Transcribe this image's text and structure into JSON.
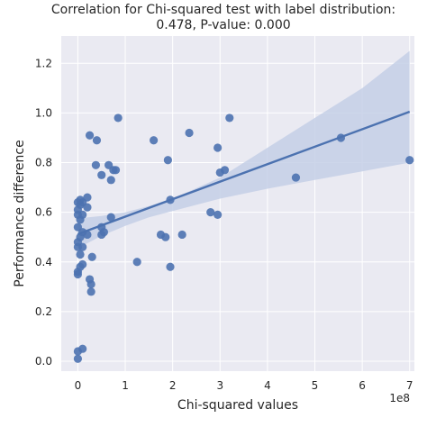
{
  "chart_data": {
    "type": "scatter",
    "title_line1": "Correlation for Chi-squared test with label distribution:",
    "title_line2": "0.478, P-value: 0.000",
    "xlabel": "Chi-squared values",
    "ylabel": "Performance difference",
    "x_offset_label": "1e8",
    "xlim": [
      -0.35,
      7.1
    ],
    "ylim": [
      -0.04,
      1.31
    ],
    "x_ticks": [
      "0",
      "1",
      "2",
      "3",
      "4",
      "5",
      "6",
      "7"
    ],
    "y_ticks": [
      "0.0",
      "0.2",
      "0.4",
      "0.6",
      "0.8",
      "1.0",
      "1.2"
    ],
    "grid": true,
    "point_color": "#4c72b0",
    "line_color": "#4c72b0",
    "band_color": "#c4cfe6",
    "plot_background": "#eaeaf2",
    "regression": {
      "x": [
        0,
        7.0
      ],
      "y": [
        0.512,
        1.005
      ]
    },
    "ci_band": {
      "x": [
        0,
        0.5,
        1.0,
        1.5,
        2.0,
        3.0,
        4.0,
        5.0,
        6.0,
        7.0
      ],
      "lower": [
        0.455,
        0.505,
        0.545,
        0.58,
        0.605,
        0.655,
        0.695,
        0.73,
        0.765,
        0.8
      ],
      "upper": [
        0.575,
        0.585,
        0.6,
        0.625,
        0.655,
        0.74,
        0.86,
        0.98,
        1.1,
        1.25
      ]
    },
    "points": [
      {
        "x": 0.0,
        "y": 0.01
      },
      {
        "x": 0.0,
        "y": 0.04
      },
      {
        "x": 0.1,
        "y": 0.05
      },
      {
        "x": 0.0,
        "y": 0.35
      },
      {
        "x": 0.0,
        "y": 0.36
      },
      {
        "x": 0.05,
        "y": 0.38
      },
      {
        "x": 0.1,
        "y": 0.39
      },
      {
        "x": 0.05,
        "y": 0.43
      },
      {
        "x": 0.0,
        "y": 0.46
      },
      {
        "x": 0.1,
        "y": 0.46
      },
      {
        "x": 0.0,
        "y": 0.48
      },
      {
        "x": 0.05,
        "y": 0.5
      },
      {
        "x": 0.1,
        "y": 0.52
      },
      {
        "x": 0.0,
        "y": 0.54
      },
      {
        "x": 0.05,
        "y": 0.57
      },
      {
        "x": 0.0,
        "y": 0.59
      },
      {
        "x": 0.1,
        "y": 0.59
      },
      {
        "x": 0.0,
        "y": 0.61
      },
      {
        "x": 0.05,
        "y": 0.63
      },
      {
        "x": 0.0,
        "y": 0.64
      },
      {
        "x": 0.1,
        "y": 0.64
      },
      {
        "x": 0.05,
        "y": 0.65
      },
      {
        "x": 0.2,
        "y": 0.62
      },
      {
        "x": 0.2,
        "y": 0.66
      },
      {
        "x": 0.2,
        "y": 0.51
      },
      {
        "x": 0.25,
        "y": 0.33
      },
      {
        "x": 0.28,
        "y": 0.31
      },
      {
        "x": 0.28,
        "y": 0.28
      },
      {
        "x": 0.3,
        "y": 0.42
      },
      {
        "x": 0.25,
        "y": 0.91
      },
      {
        "x": 0.4,
        "y": 0.89
      },
      {
        "x": 0.38,
        "y": 0.79
      },
      {
        "x": 0.5,
        "y": 0.75
      },
      {
        "x": 0.5,
        "y": 0.51
      },
      {
        "x": 0.5,
        "y": 0.54
      },
      {
        "x": 0.55,
        "y": 0.52
      },
      {
        "x": 0.65,
        "y": 0.79
      },
      {
        "x": 0.7,
        "y": 0.73
      },
      {
        "x": 0.75,
        "y": 0.77
      },
      {
        "x": 0.8,
        "y": 0.77
      },
      {
        "x": 0.85,
        "y": 0.98
      },
      {
        "x": 0.7,
        "y": 0.58
      },
      {
        "x": 1.25,
        "y": 0.4
      },
      {
        "x": 1.6,
        "y": 0.89
      },
      {
        "x": 1.75,
        "y": 0.51
      },
      {
        "x": 1.85,
        "y": 0.5
      },
      {
        "x": 1.9,
        "y": 0.81
      },
      {
        "x": 1.95,
        "y": 0.38
      },
      {
        "x": 2.2,
        "y": 0.51
      },
      {
        "x": 2.35,
        "y": 0.92
      },
      {
        "x": 2.8,
        "y": 0.6
      },
      {
        "x": 2.95,
        "y": 0.59
      },
      {
        "x": 2.95,
        "y": 0.86
      },
      {
        "x": 3.0,
        "y": 0.76
      },
      {
        "x": 3.1,
        "y": 0.77
      },
      {
        "x": 3.2,
        "y": 0.98
      },
      {
        "x": 4.6,
        "y": 0.74
      },
      {
        "x": 5.55,
        "y": 0.9
      },
      {
        "x": 7.0,
        "y": 0.81
      },
      {
        "x": 1.95,
        "y": 0.65
      }
    ]
  }
}
